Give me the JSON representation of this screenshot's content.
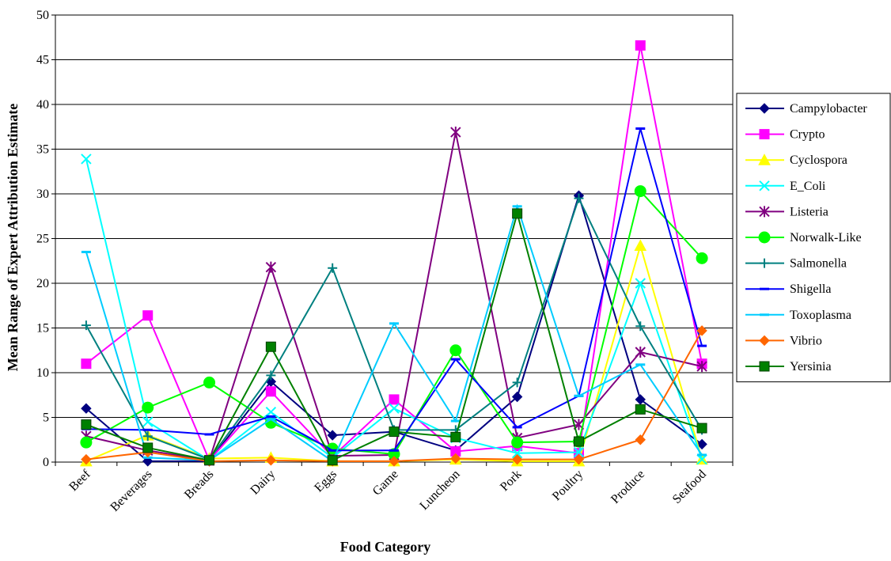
{
  "chart_data": {
    "type": "line",
    "xlabel": "Food Category",
    "ylabel": "Mean Range of Expert Attribution Estimate",
    "ylim": [
      0,
      50
    ],
    "yticks": [
      0,
      5,
      10,
      15,
      20,
      25,
      30,
      35,
      40,
      45,
      50
    ],
    "grid": "horizontal",
    "legend_position": "right",
    "categories": [
      "Beef",
      "Beverages",
      "Breads",
      "Dairy",
      "Eggs",
      "Game",
      "Luncheon",
      "Pork",
      "Poultry",
      "Produce",
      "Seafood"
    ],
    "series": [
      {
        "name": "Campylobacter",
        "color": "#000080",
        "marker": "diamond",
        "values": [
          6.0,
          0.1,
          0.1,
          9.0,
          3.0,
          3.4,
          1.3,
          7.3,
          29.8,
          7.0,
          2.0
        ]
      },
      {
        "name": "Crypto",
        "color": "#FF00FF",
        "marker": "square",
        "values": [
          11.0,
          16.4,
          0.2,
          7.9,
          0.6,
          7.0,
          1.2,
          1.8,
          1.0,
          46.6,
          11.0
        ]
      },
      {
        "name": "Cyclospora",
        "color": "#FFFF00",
        "marker": "triangle",
        "values": [
          0.1,
          3.0,
          0.4,
          0.5,
          0.1,
          0.1,
          0.3,
          0.1,
          0.1,
          24.2,
          0.3
        ]
      },
      {
        "name": "E_Coli",
        "color": "#00FFFF",
        "marker": "x",
        "values": [
          33.9,
          4.5,
          0.2,
          5.6,
          0.5,
          6.0,
          2.7,
          1.0,
          1.1,
          20.0,
          0.3
        ]
      },
      {
        "name": "Listeria",
        "color": "#800080",
        "marker": "asterisk",
        "values": [
          2.9,
          1.3,
          0.2,
          21.8,
          0.7,
          0.8,
          36.9,
          2.7,
          4.2,
          12.3,
          10.7
        ]
      },
      {
        "name": "Norwalk-Like",
        "color": "#00FF00",
        "marker": "circle",
        "values": [
          2.2,
          6.1,
          8.9,
          4.4,
          1.5,
          0.9,
          12.5,
          2.2,
          2.3,
          30.3,
          22.8
        ]
      },
      {
        "name": "Salmonella",
        "color": "#008080",
        "marker": "plus",
        "values": [
          15.3,
          2.9,
          0.3,
          9.7,
          21.7,
          3.6,
          3.6,
          8.9,
          29.5,
          15.2,
          3.6
        ]
      },
      {
        "name": "Shigella",
        "color": "#0000FF",
        "marker": "dash",
        "values": [
          3.7,
          3.6,
          3.1,
          5.1,
          1.3,
          1.3,
          11.5,
          3.9,
          7.4,
          37.3,
          13.0
        ]
      },
      {
        "name": "Toxoplasma",
        "color": "#00CCFF",
        "marker": "dash",
        "values": [
          23.5,
          0.5,
          0.2,
          4.8,
          0.1,
          15.5,
          4.6,
          28.6,
          7.4,
          10.9,
          0.8
        ]
      },
      {
        "name": "Vibrio",
        "color": "#FF6600",
        "marker": "diamond",
        "values": [
          0.3,
          1.1,
          0.1,
          0.2,
          0.1,
          0.1,
          0.4,
          0.3,
          0.3,
          2.5,
          14.7
        ]
      },
      {
        "name": "Yersinia",
        "color": "#008000",
        "marker": "square",
        "values": [
          4.2,
          1.6,
          0.2,
          12.9,
          0.2,
          3.4,
          2.8,
          27.8,
          2.3,
          5.9,
          3.8
        ]
      }
    ]
  }
}
